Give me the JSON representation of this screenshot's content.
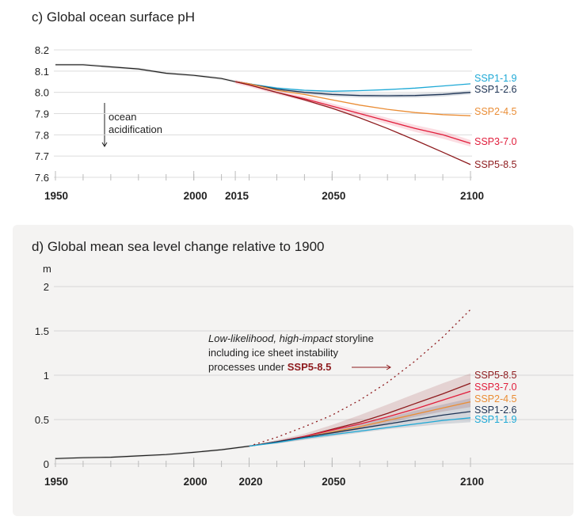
{
  "chart_data": [
    {
      "type": "line",
      "title": "c) Global ocean surface pH",
      "xlabel": "",
      "ylabel": "",
      "xlim": [
        1950,
        2100
      ],
      "ylim": [
        7.6,
        8.2
      ],
      "xticks": [
        1950,
        2000,
        2015,
        2050,
        2100
      ],
      "yticks": [
        "8.2",
        "8.1",
        "8.0",
        "7.9",
        "7.8",
        "7.7",
        "7.6"
      ],
      "grid": true,
      "annotation": [
        "ocean",
        "acidification"
      ],
      "historical": {
        "x": [
          1950,
          1960,
          1970,
          1980,
          1990,
          2000,
          2010,
          2015
        ],
        "y": [
          8.13,
          8.13,
          8.12,
          8.11,
          8.09,
          8.08,
          8.065,
          8.05
        ],
        "color": "#222222"
      },
      "x": [
        2015,
        2020,
        2030,
        2040,
        2050,
        2060,
        2070,
        2080,
        2090,
        2100
      ],
      "series": [
        {
          "name": "SSP1-1.9",
          "color": "#1ea9d6",
          "values": [
            8.05,
            8.04,
            8.02,
            8.01,
            8.005,
            8.008,
            8.013,
            8.02,
            8.03,
            8.04
          ]
        },
        {
          "name": "SSP1-2.6",
          "color": "#1d3354",
          "values": [
            8.05,
            8.04,
            8.015,
            8.0,
            7.99,
            7.985,
            7.984,
            7.985,
            7.99,
            8.0
          ],
          "range": [
            [
              8.05,
              8.04,
              8.005,
              7.99,
              7.98,
              7.975,
              7.974,
              7.975,
              7.98,
              7.99
            ],
            [
              8.05,
              8.04,
              8.025,
              8.01,
              8.0,
              7.995,
              7.994,
              7.995,
              8.0,
              8.01
            ]
          ]
        },
        {
          "name": "SSP2-4.5",
          "color": "#ea8d35",
          "values": [
            8.05,
            8.04,
            8.01,
            7.99,
            7.965,
            7.94,
            7.92,
            7.905,
            7.895,
            7.89
          ]
        },
        {
          "name": "SSP3-7.0",
          "color": "#e11d3b",
          "values": [
            8.05,
            8.035,
            8.0,
            7.97,
            7.935,
            7.9,
            7.865,
            7.83,
            7.8,
            7.76
          ],
          "range": [
            [
              8.04,
              8.025,
              7.99,
              7.958,
              7.922,
              7.886,
              7.85,
              7.814,
              7.782,
              7.745
            ],
            [
              8.06,
              8.045,
              8.01,
              7.982,
              7.948,
              7.914,
              7.88,
              7.846,
              7.818,
              7.775
            ]
          ]
        },
        {
          "name": "SSP5-8.5",
          "color": "#8e1b1e",
          "values": [
            8.05,
            8.035,
            8.0,
            7.965,
            7.925,
            7.88,
            7.83,
            7.775,
            7.718,
            7.66
          ]
        }
      ]
    },
    {
      "type": "line",
      "title": "d) Global mean sea level change relative to 1900",
      "xlabel": "",
      "ylabel": "m",
      "xlim": [
        1950,
        2100
      ],
      "ylim": [
        0,
        2
      ],
      "xticks": [
        1950,
        2000,
        2020,
        2050,
        2100
      ],
      "yticks": [
        "2",
        "1.5",
        "1",
        "0.5",
        "0"
      ],
      "grid": true,
      "historical": {
        "x": [
          1950,
          1960,
          1970,
          1980,
          1990,
          2000,
          2010,
          2020
        ],
        "y": [
          0.06,
          0.07,
          0.075,
          0.09,
          0.105,
          0.13,
          0.16,
          0.2
        ],
        "color": "#222222"
      },
      "x": [
        2020,
        2030,
        2040,
        2050,
        2060,
        2070,
        2080,
        2090,
        2100
      ],
      "series": [
        {
          "name": "SSP5-8.5",
          "color": "#8e1b1e",
          "values": [
            0.2,
            0.25,
            0.31,
            0.39,
            0.47,
            0.57,
            0.68,
            0.79,
            0.91
          ],
          "range": [
            [
              0.2,
              0.23,
              0.28,
              0.33,
              0.39,
              0.46,
              0.53,
              0.59,
              0.64
            ],
            [
              0.2,
              0.27,
              0.34,
              0.44,
              0.55,
              0.67,
              0.79,
              0.91,
              1.02
            ]
          ]
        },
        {
          "name": "SSP3-7.0",
          "color": "#e11d3b",
          "values": [
            0.2,
            0.25,
            0.31,
            0.38,
            0.45,
            0.53,
            0.62,
            0.72,
            0.82
          ]
        },
        {
          "name": "SSP2-4.5",
          "color": "#ea8d35",
          "values": [
            0.2,
            0.25,
            0.3,
            0.36,
            0.42,
            0.49,
            0.56,
            0.63,
            0.7
          ]
        },
        {
          "name": "SSP1-2.6",
          "color": "#1d3354",
          "values": [
            0.2,
            0.25,
            0.3,
            0.35,
            0.4,
            0.45,
            0.5,
            0.55,
            0.59
          ],
          "range": [
            [
              0.2,
              0.23,
              0.27,
              0.31,
              0.35,
              0.39,
              0.42,
              0.45,
              0.47
            ],
            [
              0.2,
              0.26,
              0.32,
              0.38,
              0.45,
              0.52,
              0.6,
              0.67,
              0.74
            ]
          ]
        },
        {
          "name": "SSP1-1.9",
          "color": "#1ea9d6",
          "values": [
            0.2,
            0.24,
            0.29,
            0.33,
            0.37,
            0.41,
            0.45,
            0.49,
            0.52
          ]
        }
      ],
      "storyline": {
        "text_italic": "Low-likelihood, high-impact",
        "text_rest": " storyline",
        "line2": "including ice sheet instability",
        "line3": "processes under ",
        "scenario": "SSP5-8.5",
        "color": "#8e1b1e",
        "x": [
          2020,
          2030,
          2040,
          2050,
          2060,
          2070,
          2080,
          2090,
          2100
        ],
        "values": [
          0.2,
          0.3,
          0.42,
          0.55,
          0.72,
          0.92,
          1.16,
          1.43,
          1.74
        ]
      }
    }
  ]
}
